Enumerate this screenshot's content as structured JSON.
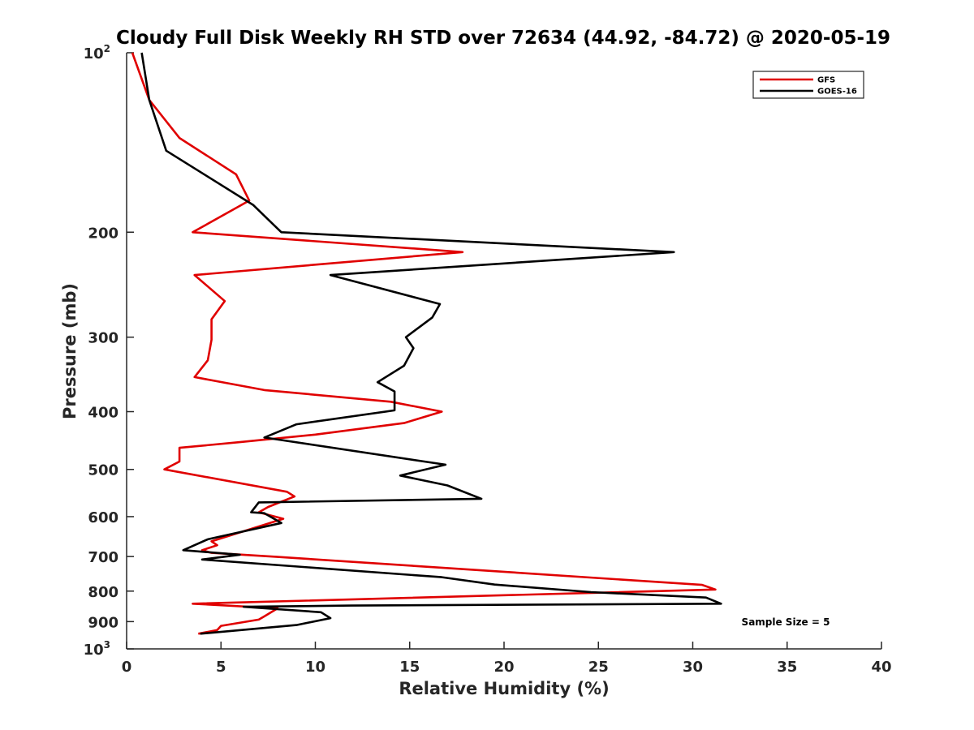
{
  "chart_data": {
    "type": "line",
    "title": "Cloudy Full Disk Weekly RH STD over 72634 (44.92, -84.72) @ 2020-05-19",
    "xlabel": "Relative Humidity (%)",
    "ylabel": "Pressure (mb)",
    "xlim": [
      0,
      40
    ],
    "ylim": [
      100,
      1000
    ],
    "yscale": "log",
    "y_reversed": true,
    "x_ticks": [
      0,
      5,
      10,
      15,
      20,
      25,
      30,
      35,
      40
    ],
    "x_tick_labels": [
      "0",
      "5",
      "10",
      "15",
      "20",
      "25",
      "30",
      "35",
      "40"
    ],
    "y_ticks": [
      100,
      200,
      300,
      400,
      500,
      600,
      700,
      800,
      900,
      1000
    ],
    "y_tick_labels": [
      {
        "base": "10",
        "sup": "2"
      },
      {
        "base": "200",
        "sup": ""
      },
      {
        "base": "300",
        "sup": ""
      },
      {
        "base": "400",
        "sup": ""
      },
      {
        "base": "500",
        "sup": ""
      },
      {
        "base": "600",
        "sup": ""
      },
      {
        "base": "700",
        "sup": ""
      },
      {
        "base": "800",
        "sup": ""
      },
      {
        "base": "900",
        "sup": ""
      },
      {
        "base": "10",
        "sup": "3"
      }
    ],
    "grid": false,
    "legend_position": "top-right",
    "annotation": "Sample Size = 5",
    "series": [
      {
        "name": "GFS",
        "color": "#e00000",
        "points": [
          [
            0.3,
            100
          ],
          [
            1.2,
            120
          ],
          [
            2.8,
            139
          ],
          [
            5.8,
            160
          ],
          [
            6.5,
            177
          ],
          [
            3.5,
            200
          ],
          [
            17.8,
            216
          ],
          [
            3.6,
            236
          ],
          [
            5.2,
            261
          ],
          [
            4.5,
            280
          ],
          [
            4.5,
            303
          ],
          [
            4.3,
            328
          ],
          [
            3.6,
            350
          ],
          [
            7.3,
            368
          ],
          [
            14.0,
            385
          ],
          [
            16.7,
            400
          ],
          [
            14.7,
            418
          ],
          [
            10.0,
            437
          ],
          [
            6.0,
            450
          ],
          [
            2.8,
            460
          ],
          [
            2.8,
            485
          ],
          [
            2.0,
            500
          ],
          [
            8.5,
            545
          ],
          [
            8.9,
            555
          ],
          [
            7.5,
            578
          ],
          [
            7.0,
            590
          ],
          [
            8.3,
            605
          ],
          [
            4.5,
            660
          ],
          [
            4.8,
            670
          ],
          [
            4.0,
            683
          ],
          [
            4.5,
            690
          ],
          [
            8.0,
            701
          ],
          [
            30.5,
            781
          ],
          [
            31.2,
            795
          ],
          [
            3.5,
            840
          ],
          [
            8.0,
            855
          ],
          [
            7.3,
            882
          ],
          [
            7.0,
            893
          ],
          [
            5.0,
            915
          ],
          [
            4.8,
            930
          ],
          [
            3.8,
            943
          ]
        ]
      },
      {
        "name": "GOES-16",
        "color": "#000000",
        "points": [
          [
            0.8,
            100
          ],
          [
            1.2,
            120
          ],
          [
            2.1,
            146
          ],
          [
            6.7,
            180
          ],
          [
            8.2,
            200
          ],
          [
            29.0,
            216
          ],
          [
            10.8,
            236
          ],
          [
            16.6,
            264
          ],
          [
            16.2,
            278
          ],
          [
            14.8,
            300
          ],
          [
            15.2,
            313
          ],
          [
            14.7,
            335
          ],
          [
            13.3,
            357
          ],
          [
            14.2,
            370
          ],
          [
            14.2,
            398
          ],
          [
            9.0,
            420
          ],
          [
            7.3,
            442
          ],
          [
            16.9,
            491
          ],
          [
            14.5,
            512
          ],
          [
            17.0,
            532
          ],
          [
            18.8,
            560
          ],
          [
            7.0,
            568
          ],
          [
            6.6,
            590
          ],
          [
            7.3,
            592
          ],
          [
            8.2,
            615
          ],
          [
            4.3,
            655
          ],
          [
            3.0,
            683
          ],
          [
            6.0,
            695
          ],
          [
            4.0,
            708
          ],
          [
            16.7,
            758
          ],
          [
            19.5,
            780
          ],
          [
            24.6,
            803
          ],
          [
            30.7,
            820
          ],
          [
            31.5,
            840
          ],
          [
            11.9,
            846
          ],
          [
            6.2,
            850
          ],
          [
            10.3,
            868
          ],
          [
            10.8,
            888
          ],
          [
            9.0,
            912
          ],
          [
            3.9,
            943
          ]
        ]
      }
    ]
  }
}
